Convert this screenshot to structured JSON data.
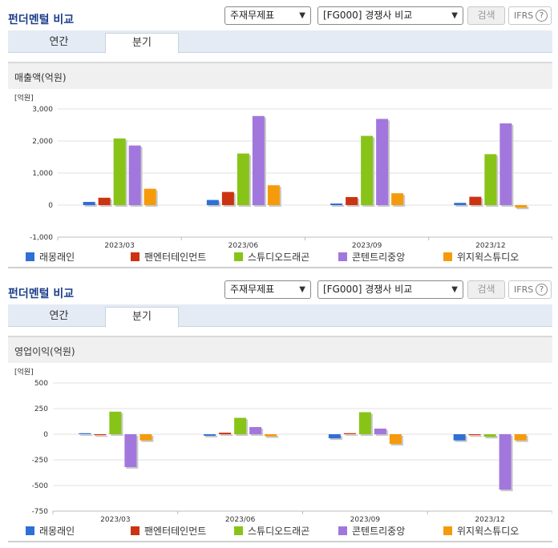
{
  "panels": [
    {
      "title": "펀더멘털 비교",
      "select1": "주재무제표",
      "select2": "[FG000] 경쟁사 비교",
      "search_label": "검색",
      "ifrs_label": "IFRS",
      "help": "?",
      "tabs": [
        "연간",
        "분기"
      ],
      "section_title": "매출액(억원)"
    },
    {
      "title": "펀더멘털 비교",
      "select1": "주재무제표",
      "select2": "[FG000] 경쟁사 비교",
      "search_label": "검색",
      "ifrs_label": "IFRS",
      "help": "?",
      "tabs": [
        "연간",
        "분기"
      ],
      "section_title": "영업이익(억원)"
    }
  ],
  "colors": [
    "#2f6fd6",
    "#cc3311",
    "#88c418",
    "#a277dd",
    "#f59b0b"
  ],
  "chart_data": [
    {
      "type": "bar",
      "unit": "[억원]",
      "categories": [
        "2023/03",
        "2023/06",
        "2023/09",
        "2023/12"
      ],
      "ylim": [
        -1000,
        3000
      ],
      "yticks": [
        3000,
        2000,
        1000,
        0,
        -1000
      ],
      "ytick_labels": [
        "3,000",
        "2,000",
        "1,000",
        "0",
        "-1,000"
      ],
      "series": [
        {
          "name": "래몽래인",
          "values": [
            100,
            160,
            50,
            70
          ]
        },
        {
          "name": "팬엔터테인먼트",
          "values": [
            230,
            410,
            250,
            260
          ]
        },
        {
          "name": "스튜디오드래곤",
          "values": [
            2080,
            1610,
            2160,
            1590
          ]
        },
        {
          "name": "콘텐트리중앙",
          "values": [
            1860,
            2780,
            2690,
            2550
          ]
        },
        {
          "name": "위지윅스튜디오",
          "values": [
            510,
            620,
            370,
            -80
          ]
        }
      ]
    },
    {
      "type": "bar",
      "unit": "[억원]",
      "categories": [
        "2023/03",
        "2023/06",
        "2023/09",
        "2023/12"
      ],
      "ylim": [
        -750,
        500
      ],
      "yticks": [
        500,
        250,
        0,
        -250,
        -500,
        -750
      ],
      "ytick_labels": [
        "500",
        "250",
        "0",
        "-250",
        "-500",
        "-750"
      ],
      "series": [
        {
          "name": "래몽래인",
          "values": [
            10,
            -15,
            -40,
            -60
          ]
        },
        {
          "name": "팬엔터테인먼트",
          "values": [
            -10,
            15,
            10,
            -10
          ]
        },
        {
          "name": "스튜디오드래곤",
          "values": [
            220,
            160,
            215,
            -25
          ]
        },
        {
          "name": "콘텐트리중앙",
          "values": [
            -320,
            70,
            55,
            -540
          ]
        },
        {
          "name": "위지윅스튜디오",
          "values": [
            -60,
            -20,
            -95,
            -60
          ]
        }
      ]
    }
  ]
}
